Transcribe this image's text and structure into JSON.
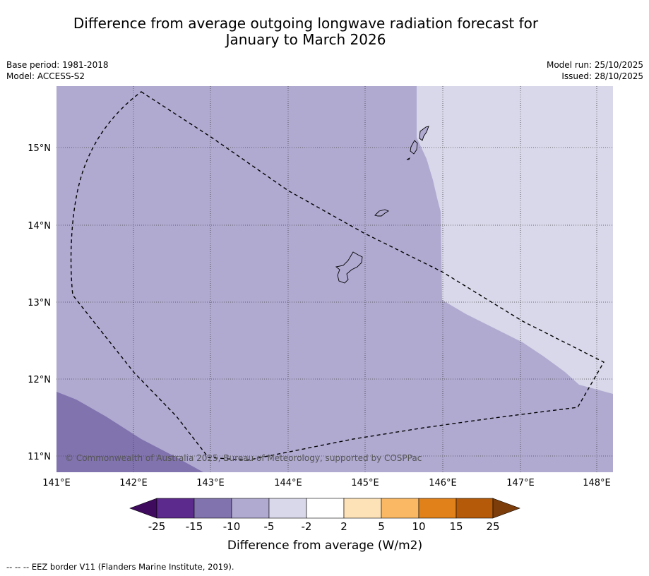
{
  "title_line1": "Difference from average outgoing longwave radiation forecast for",
  "title_line2": "January to March 2026",
  "base_period": "Base period: 1981-2018",
  "model": "Model: ACCESS-S2",
  "model_run": "Model run: 25/10/2025",
  "issued": "Issued: 28/10/2025",
  "copyright": "© Commonwealth of Australia 2025, Bureau of Meteorology, supported by COSPPac",
  "lat_labels": [
    "15°N",
    "14°N",
    "13°N",
    "12°N",
    "11°N"
  ],
  "lon_labels": [
    "141°E",
    "142°E",
    "143°E",
    "144°E",
    "145°E",
    "146°E",
    "147°E",
    "148°E"
  ],
  "colorbar": {
    "ticks": [
      "-25",
      "-15",
      "-10",
      "-5",
      "-2",
      "2",
      "5",
      "10",
      "15",
      "25"
    ],
    "colors": [
      "#3f0b5e",
      "#5c2a8c",
      "#8173ae",
      "#b0aad1",
      "#d8d8ea",
      "#ffffff",
      "#fde1b7",
      "#fbb864",
      "#e08119",
      "#b55a09",
      "#7c3d0a"
    ],
    "label": "Difference from average (W/m2)"
  },
  "legend_footer": "--  --  -- EEZ border V11 (Flanders Marine Institute, 2019).",
  "map_colors": {
    "band_minus10": "#8173ae",
    "band_minus5": "#b0aad1",
    "band_minus2": "#d8d8ea"
  }
}
